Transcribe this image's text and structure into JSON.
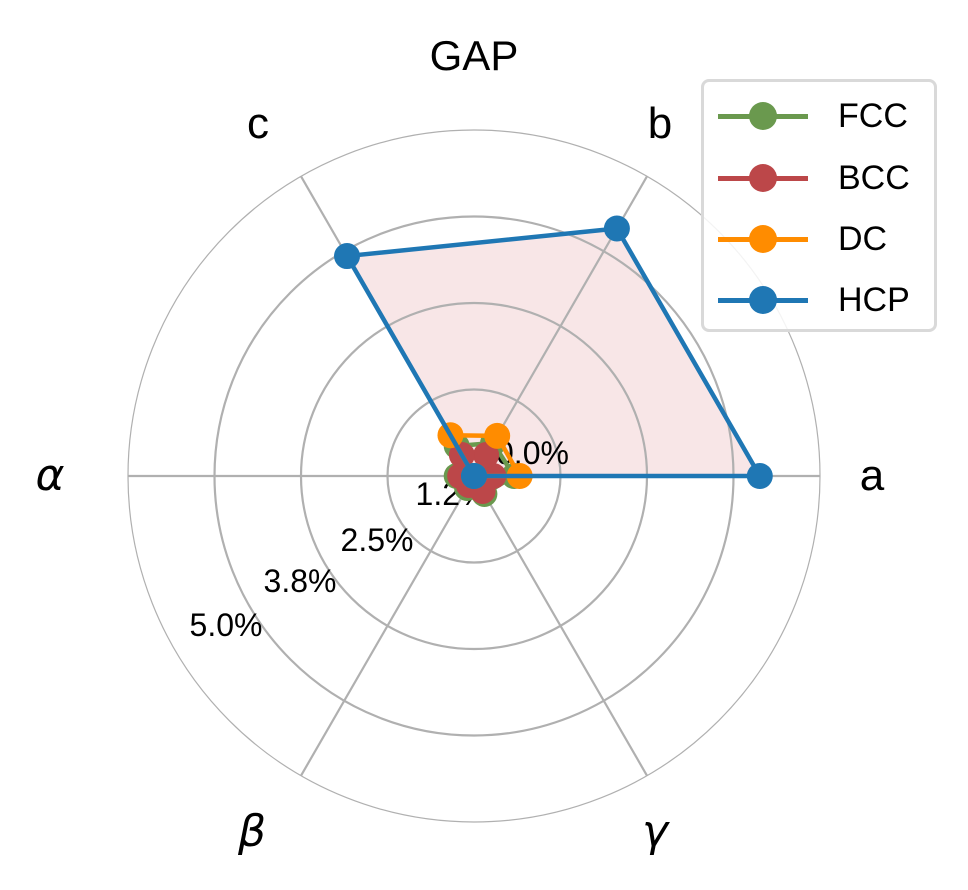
{
  "chart_data": {
    "type": "radar",
    "title": "GAP",
    "axes": [
      "a",
      "b",
      "c",
      "α",
      "β",
      "γ"
    ],
    "axis_angles_deg": [
      0,
      60,
      120,
      180,
      240,
      300
    ],
    "r_ticks": [
      0.0,
      1.25,
      2.5,
      3.75,
      5.0
    ],
    "r_tick_labels": [
      "0.0%",
      "1.2%",
      "2.5%",
      "3.8%",
      "5.0%"
    ],
    "rlim": [
      0,
      5.0
    ],
    "unit": "%",
    "grid": true,
    "legend_position": "upper right",
    "series": [
      {
        "name": "FCC",
        "color": "#6a994e",
        "values": [
          0.58,
          0.55,
          0.5,
          0.25,
          0.2,
          0.3
        ]
      },
      {
        "name": "BCC",
        "color": "#bc4749",
        "values": [
          0.28,
          0.35,
          0.35,
          0.2,
          0.15,
          0.25
        ]
      },
      {
        "name": "DC",
        "color": "#ff8c00",
        "values": [
          0.66,
          0.67,
          0.68,
          0.0,
          0.0,
          0.0
        ]
      },
      {
        "name": "HCP",
        "color": "#1f77b4",
        "values": [
          4.13,
          4.13,
          3.67,
          0.0,
          0.0,
          0.0
        ],
        "fill": "#f8e6e7"
      }
    ]
  },
  "legend": {
    "items": [
      {
        "label": "FCC",
        "color": "#6a994e"
      },
      {
        "label": "BCC",
        "color": "#bc4749"
      },
      {
        "label": "DC",
        "color": "#ff8c00"
      },
      {
        "label": "HCP",
        "color": "#1f77b4"
      }
    ]
  }
}
